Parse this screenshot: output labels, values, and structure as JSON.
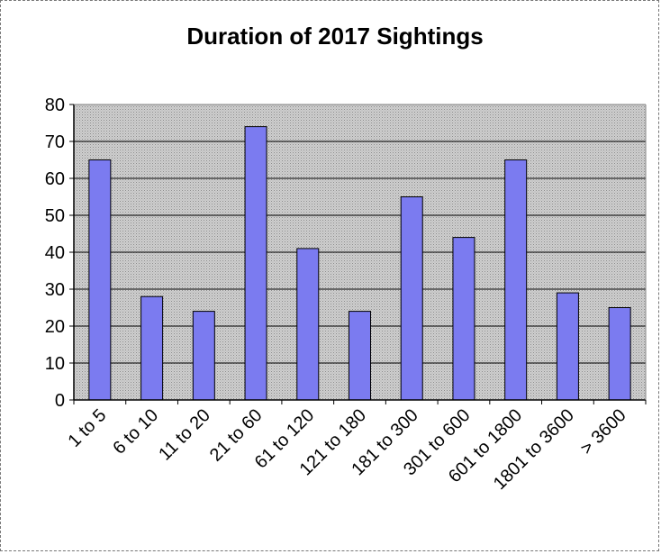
{
  "chart_data": {
    "type": "bar",
    "title": "Duration of 2017 Sightings",
    "xlabel": "",
    "ylabel": "",
    "categories": [
      "1 to 5",
      "6 to 10",
      "11 to 20",
      "21 to 60",
      "61 to 120",
      "121 to 180",
      "181 to 300",
      "301 to 600",
      "601 to 1800",
      "1801 to 3600",
      "> 3600"
    ],
    "values": [
      65,
      28,
      24,
      74,
      41,
      24,
      55,
      44,
      65,
      29,
      25
    ],
    "ylim": [
      0,
      80
    ],
    "yticks": [
      0,
      10,
      20,
      30,
      40,
      50,
      60,
      70,
      80
    ],
    "grid": true,
    "legend": "none",
    "colors": {
      "bar": "#7b7bf0",
      "bar_edge": "#000000",
      "plot_background": "#c0c0c0",
      "gridline": "#000000"
    }
  }
}
